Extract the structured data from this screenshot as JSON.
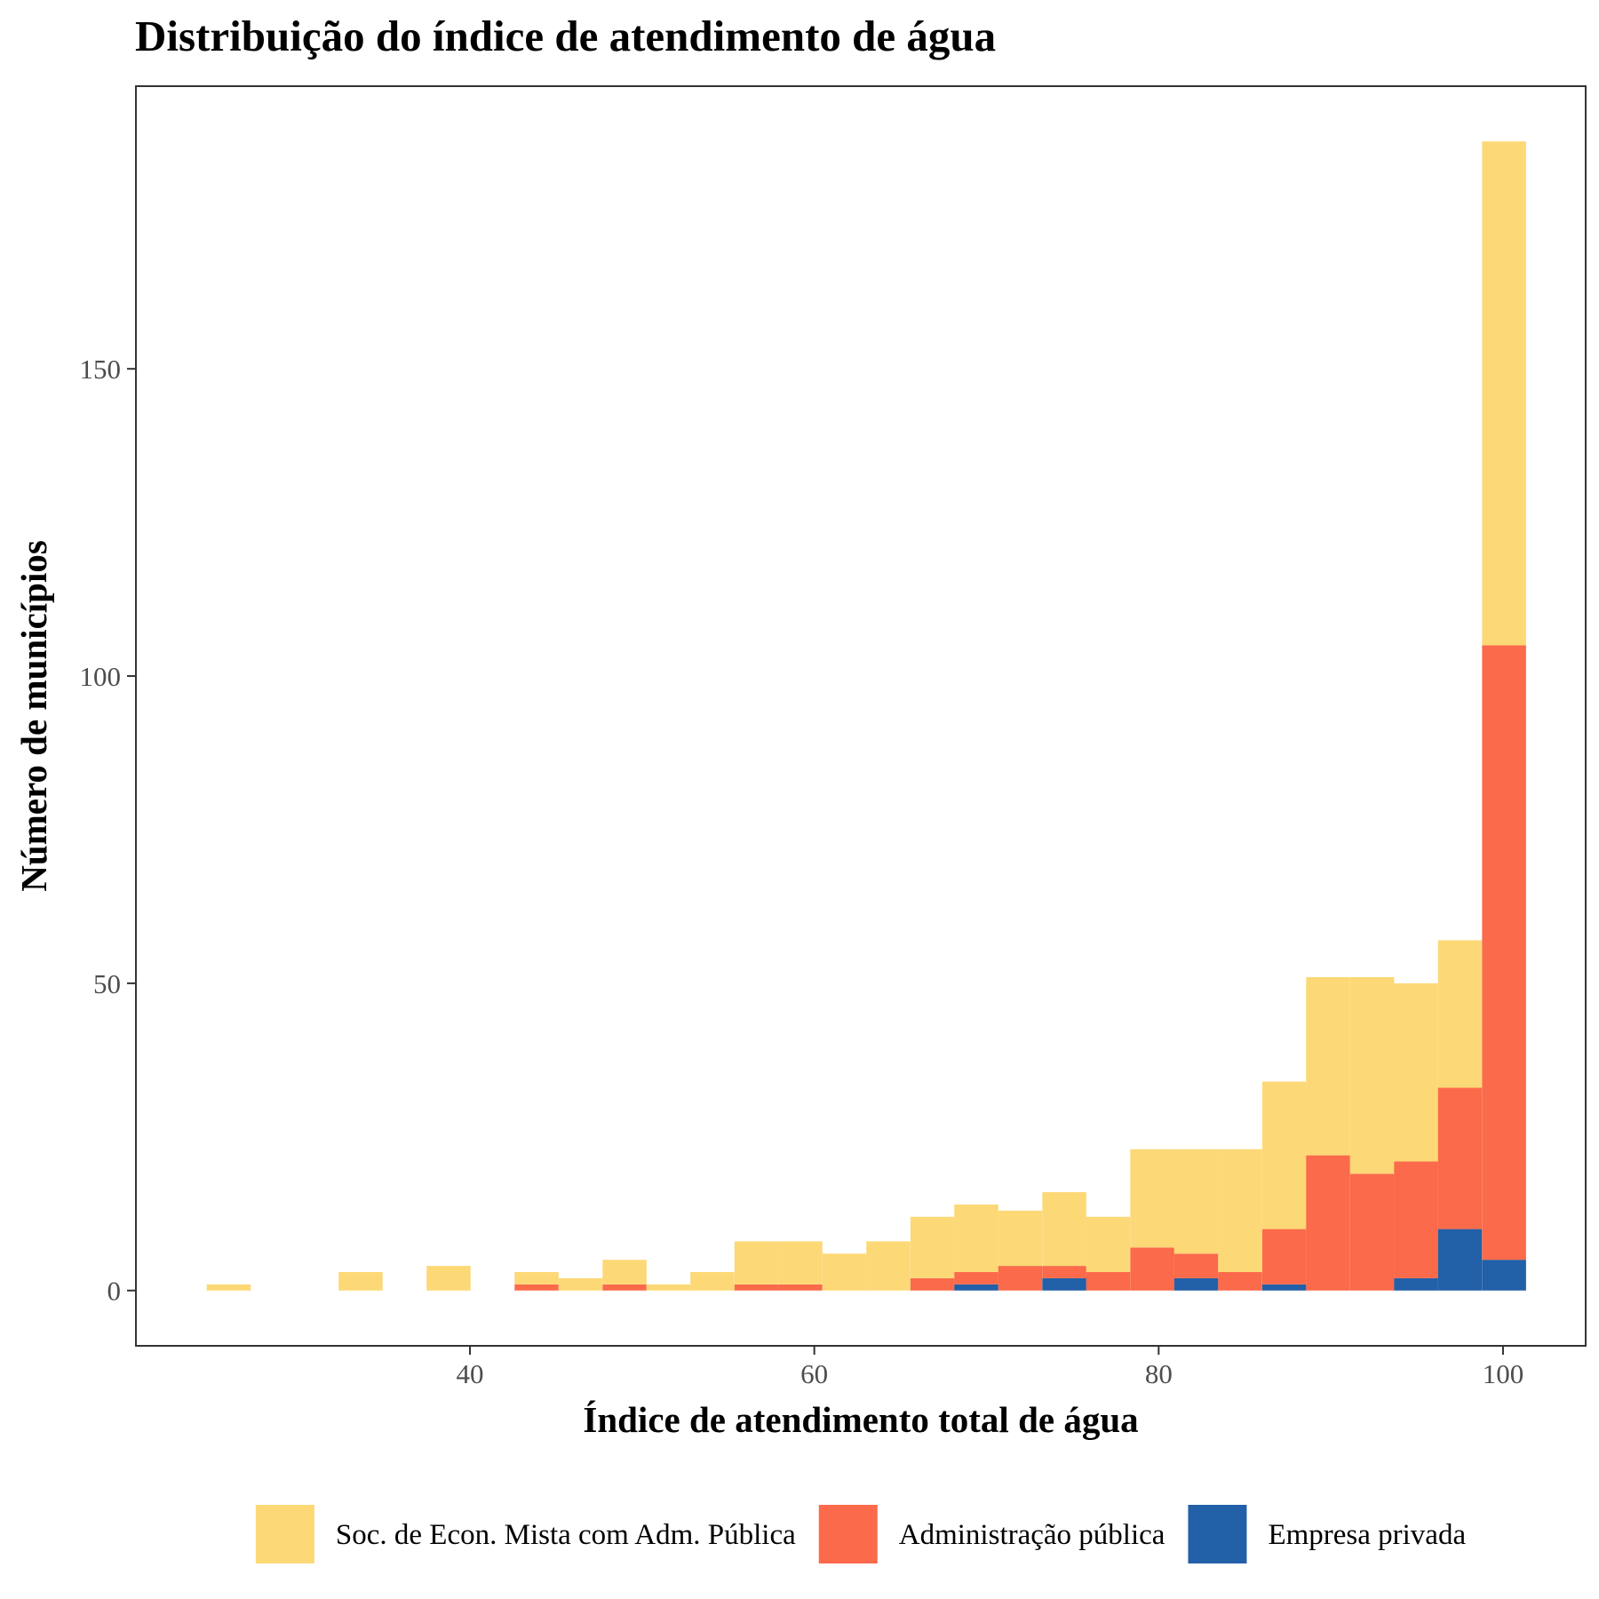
{
  "chart_data": {
    "type": "bar",
    "subtype": "stacked-histogram",
    "title": "Distribuição do índice de atendimento de água",
    "xlabel": "Índice de atendimento total de água",
    "ylabel": "Número de municípios",
    "xlim": [
      20.6,
      104.8
    ],
    "ylim": [
      -9,
      196
    ],
    "x_ticks": [
      40,
      60,
      80,
      100
    ],
    "y_ticks": [
      0,
      50,
      100,
      150
    ],
    "grid": false,
    "legend_position": "bottom",
    "bin_width": 2.554,
    "bins": [
      25.99,
      28.54,
      31.1,
      33.65,
      36.21,
      38.76,
      41.31,
      43.87,
      46.42,
      48.98,
      51.53,
      54.08,
      56.64,
      59.19,
      61.75,
      64.3,
      66.86,
      69.41,
      71.96,
      74.52,
      77.07,
      79.63,
      82.18,
      84.73,
      87.29,
      89.84,
      92.4,
      94.95,
      97.5,
      100.06
    ],
    "series": [
      {
        "name": "Soc. de Econ. Mista com Adm. Pública",
        "color": "#FDD876",
        "values": [
          1,
          0,
          0,
          3,
          0,
          4,
          0,
          2,
          2,
          4,
          1,
          3,
          7,
          7,
          6,
          8,
          10,
          11,
          9,
          12,
          9,
          16,
          17,
          20,
          24,
          29,
          32,
          29,
          24,
          82
        ]
      },
      {
        "name": "Administração pública",
        "color": "#FB6A4A",
        "values": [
          0,
          0,
          0,
          0,
          0,
          0,
          0,
          1,
          0,
          1,
          0,
          0,
          1,
          1,
          0,
          0,
          2,
          2,
          4,
          2,
          3,
          7,
          4,
          3,
          9,
          22,
          19,
          19,
          23,
          100
        ]
      },
      {
        "name": "Empresa privada",
        "color": "#2260A8",
        "values": [
          0,
          0,
          0,
          0,
          0,
          0,
          0,
          0,
          0,
          0,
          0,
          0,
          0,
          0,
          0,
          0,
          0,
          1,
          0,
          2,
          0,
          0,
          2,
          0,
          1,
          0,
          0,
          2,
          10,
          5
        ]
      }
    ]
  }
}
